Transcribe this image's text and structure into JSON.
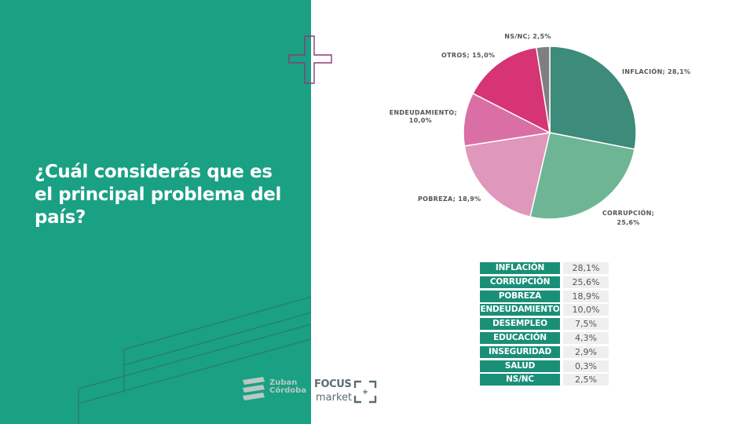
{
  "question": "¿Cuál considerás que es el principal problema del país?",
  "chart_data": {
    "type": "pie",
    "slices": [
      {
        "label": "INFLACIÓN; 28,1%",
        "value": 28.1,
        "color": "#3d8b7a"
      },
      {
        "label": "CORRUPCIÓN; 25,6%",
        "value": 25.6,
        "color": "#6db595"
      },
      {
        "label": "POBREZA; 18,9%",
        "value": 18.9,
        "color": "#e097bc"
      },
      {
        "label": "ENDEUDAMIENTO; 10,0%",
        "value": 10.0,
        "color": "#d96fa4"
      },
      {
        "label": "OTROS; 15,0%",
        "value": 15.0,
        "color": "#d63474"
      },
      {
        "label": "NS/NC; 2,5%",
        "value": 2.5,
        "color": "#7f7f7f"
      }
    ],
    "table": [
      {
        "name": "INFLACIÓN",
        "value": "28,1%"
      },
      {
        "name": "CORRUPCIÓN",
        "value": "25,6%"
      },
      {
        "name": "POBREZA",
        "value": "18,9%"
      },
      {
        "name": "ENDEUDAMIENTO",
        "value": "10,0%"
      },
      {
        "name": "DESEMPLEO",
        "value": "7,5%"
      },
      {
        "name": "EDUCACIÓN",
        "value": "4,3%"
      },
      {
        "name": "INSEGURIDAD",
        "value": "2,9%"
      },
      {
        "name": "SALUD",
        "value": "0,3%"
      },
      {
        "name": "NS/NC",
        "value": "2,5%"
      }
    ]
  },
  "logos": {
    "zuban": "Zuban Córdoba",
    "focus": "FOCUS",
    "market": "market"
  }
}
